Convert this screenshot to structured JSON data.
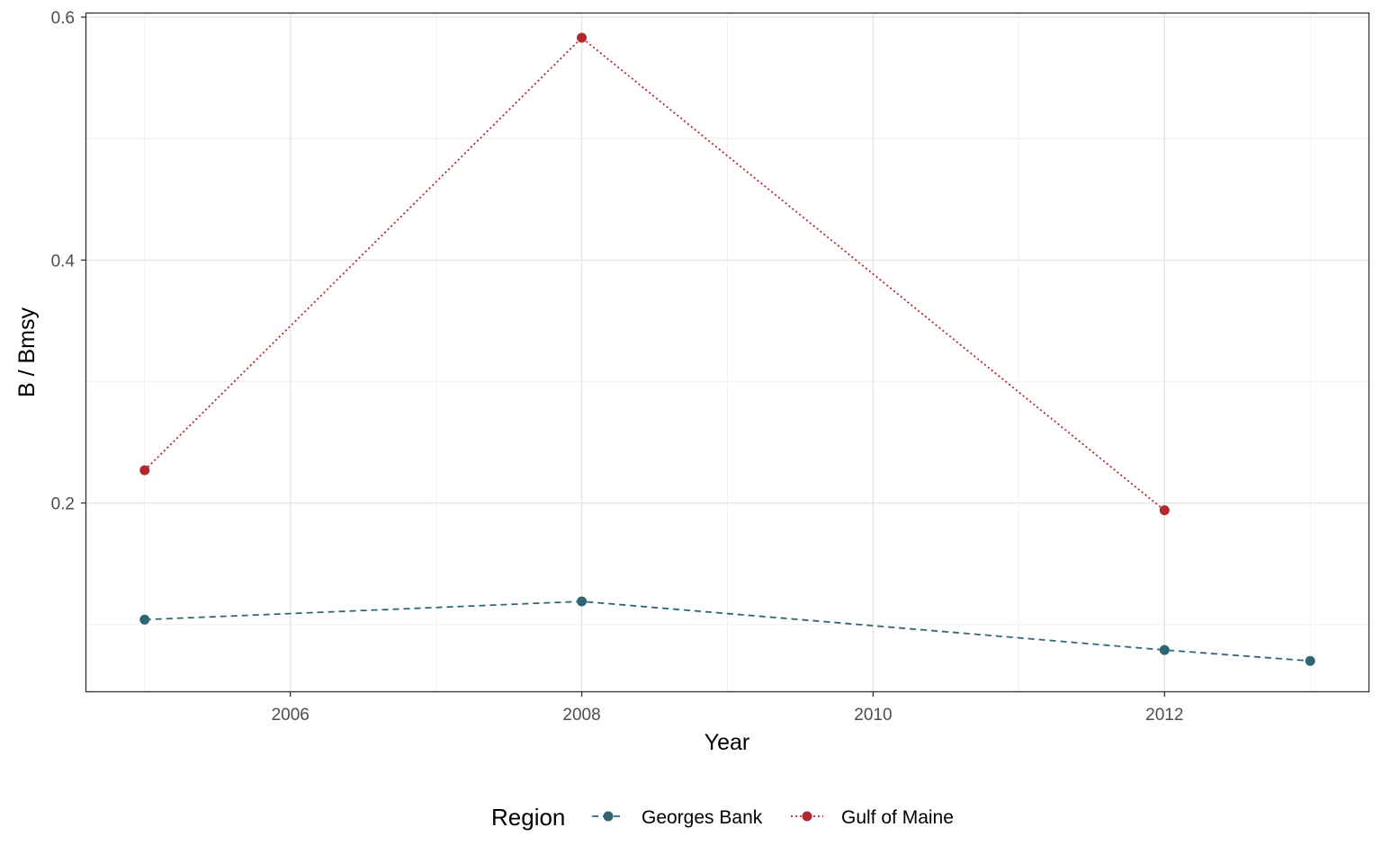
{
  "chart_data": {
    "type": "line",
    "xlabel": "Year",
    "ylabel": "B / Bmsy",
    "xlim": [
      2004.6,
      2013.4
    ],
    "ylim": [
      0.045,
      0.603
    ],
    "x_ticks": [
      2006,
      2008,
      2010,
      2012
    ],
    "x_tick_labels": [
      "2006",
      "2008",
      "2010",
      "2012"
    ],
    "y_ticks": [
      0.2,
      0.4,
      0.6
    ],
    "y_tick_labels": [
      "0.2",
      "0.4",
      "0.6"
    ],
    "grid": true,
    "legend": {
      "title": "Region",
      "position": "bottom"
    },
    "series": [
      {
        "name": "Georges Bank",
        "color": "#2f6475",
        "linestyle": "dashed",
        "points": [
          {
            "x": 2005,
            "y": 0.104
          },
          {
            "x": 2008,
            "y": 0.119
          },
          {
            "x": 2012,
            "y": 0.079
          },
          {
            "x": 2013,
            "y": 0.07
          }
        ]
      },
      {
        "name": "Gulf of Maine",
        "color": "#b1282e",
        "linestyle": "dotted",
        "points": [
          {
            "x": 2005,
            "y": 0.227
          },
          {
            "x": 2008,
            "y": 0.583
          },
          {
            "x": 2012,
            "y": 0.194
          }
        ]
      }
    ]
  }
}
